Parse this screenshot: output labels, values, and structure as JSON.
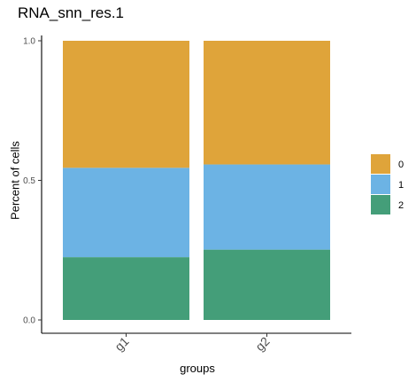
{
  "chart_data": {
    "type": "bar",
    "stacked": true,
    "title": "RNA_snn_res.1",
    "xlabel": "groups",
    "ylabel": "Percent of cells",
    "ylim": [
      0,
      1
    ],
    "yticks": [
      "0.0",
      "0.5",
      "1.0"
    ],
    "categories": [
      "g1",
      "g2"
    ],
    "grid": false,
    "legend_position": "right",
    "series": [
      {
        "name": "0",
        "color": "#DFA43A",
        "values": [
          0.455,
          0.443
        ]
      },
      {
        "name": "1",
        "color": "#6CB3E4",
        "values": [
          0.32,
          0.305
        ]
      },
      {
        "name": "2",
        "color": "#449E79",
        "values": [
          0.225,
          0.252
        ]
      }
    ]
  }
}
